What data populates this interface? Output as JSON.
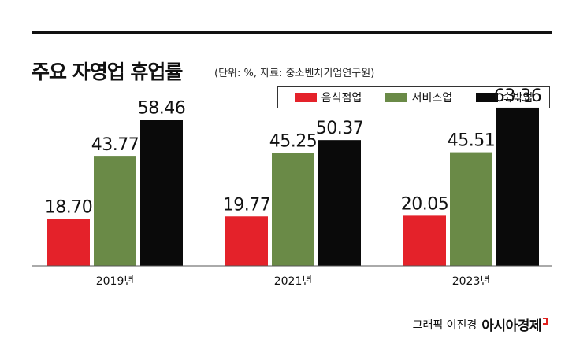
{
  "title": "주요 자영업 휴업률",
  "subtitle": "(단위: %, 자료: 중소벤처기업연구원)",
  "credit": {
    "byline": "그래픽 이진경",
    "brand": "아시아경제"
  },
  "chart_data": {
    "type": "bar",
    "categories": [
      "2019년",
      "2021년",
      "2023년"
    ],
    "series": [
      {
        "name": "음식점업",
        "color": "#e4222a",
        "values": [
          18.7,
          19.77,
          20.05
        ]
      },
      {
        "name": "서비스업",
        "color": "#6a8a47",
        "values": [
          43.77,
          45.25,
          45.51
        ]
      },
      {
        "name": "숙박업",
        "color": "#0a0a0a",
        "values": [
          58.46,
          50.37,
          63.36
        ]
      }
    ],
    "value_labels": [
      [
        "18.70",
        "19.77",
        "20.05"
      ],
      [
        "43.77",
        "45.25",
        "45.51"
      ],
      [
        "58.46",
        "50.37",
        "63.36"
      ]
    ],
    "ylim": [
      0,
      75
    ],
    "legend_position": "top-right",
    "grid": false
  }
}
